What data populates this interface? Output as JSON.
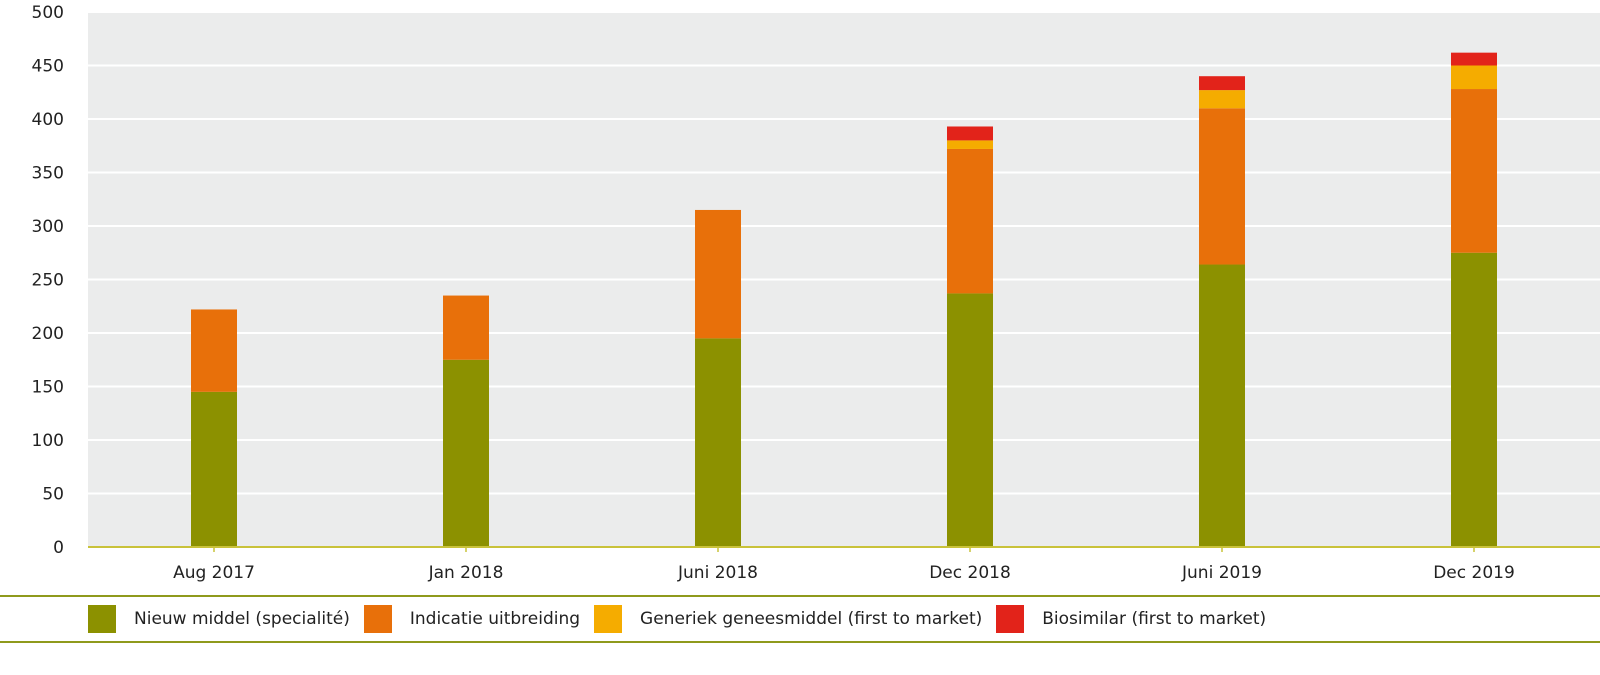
{
  "chart_data": {
    "type": "bar",
    "stacked": true,
    "title": "",
    "xlabel": "",
    "ylabel": "",
    "ylim": [
      0,
      500
    ],
    "yticks": [
      0,
      50,
      100,
      150,
      200,
      250,
      300,
      350,
      400,
      450,
      500
    ],
    "grid": true,
    "legend_position": "bottom",
    "categories": [
      "Aug 2017",
      "Jan 2018",
      "Juni 2018",
      "Dec 2018",
      "Juni 2019",
      "Dec 2019"
    ],
    "series": [
      {
        "name": "Nieuw middel (specialité)",
        "color": "#8c9100",
        "values": [
          145,
          175,
          195,
          237,
          264,
          275
        ]
      },
      {
        "name": "Indicatie uitbreiding",
        "color": "#e8700a",
        "values": [
          77,
          60,
          120,
          135,
          146,
          153
        ]
      },
      {
        "name": "Generiek geneesmiddel (first to market)",
        "color": "#f5ac00",
        "values": [
          0,
          0,
          0,
          8,
          17,
          22
        ]
      },
      {
        "name": "Biosimilar (first to market)",
        "color": "#e2231a",
        "values": [
          0,
          0,
          0,
          13,
          13,
          12
        ]
      }
    ]
  },
  "colors": {
    "plot_background": "#ebecec",
    "gridline": "#ffffff",
    "axis_line": "#c9c23a",
    "legend_border": "#8f9a1c"
  }
}
